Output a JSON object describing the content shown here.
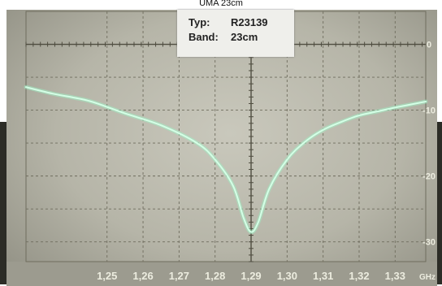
{
  "caption": "UMA 23cm",
  "label_card": {
    "type_key": "Typ:",
    "type_value": "R23139",
    "band_key": "Band:",
    "band_value": "23cm"
  },
  "colors": {
    "trace": "#9cf3c6",
    "trace_glow": "#d4ffe6",
    "grid": "#6f6d5e"
  },
  "chart_data": {
    "type": "line",
    "xlabel": "GHz",
    "ylabel": "",
    "title": "",
    "xlim": [
      1.2275,
      1.3385
    ],
    "ylim": [
      -33,
      5
    ],
    "xticks": [
      {
        "v": 1.25,
        "label": "1,25"
      },
      {
        "v": 1.26,
        "label": "1,26"
      },
      {
        "v": 1.27,
        "label": "1,27"
      },
      {
        "v": 1.28,
        "label": "1,28"
      },
      {
        "v": 1.29,
        "label": "1,29"
      },
      {
        "v": 1.3,
        "label": "1,30"
      },
      {
        "v": 1.31,
        "label": "1,31"
      },
      {
        "v": 1.32,
        "label": "1,32"
      },
      {
        "v": 1.33,
        "label": "1,33"
      }
    ],
    "yticks": [
      {
        "v": 0,
        "label": "0"
      },
      {
        "v": -10,
        "label": "-10"
      },
      {
        "v": -20,
        "label": "-20"
      },
      {
        "v": -30,
        "label": "-30"
      }
    ],
    "grid": true,
    "series": [
      {
        "x": [
          1.2275,
          1.235,
          1.245,
          1.255,
          1.265,
          1.275,
          1.28,
          1.285,
          1.288,
          1.29,
          1.292,
          1.295,
          1.3,
          1.305,
          1.31,
          1.315,
          1.32,
          1.325,
          1.33,
          1.3385
        ],
        "y": [
          -6.5,
          -7.5,
          -8.6,
          -10.5,
          -12.3,
          -15.0,
          -17.5,
          -21.5,
          -26.5,
          -28.5,
          -27.0,
          -22.0,
          -17.5,
          -14.8,
          -13.0,
          -11.8,
          -10.8,
          -10.2,
          -9.6,
          -8.7
        ]
      }
    ]
  }
}
